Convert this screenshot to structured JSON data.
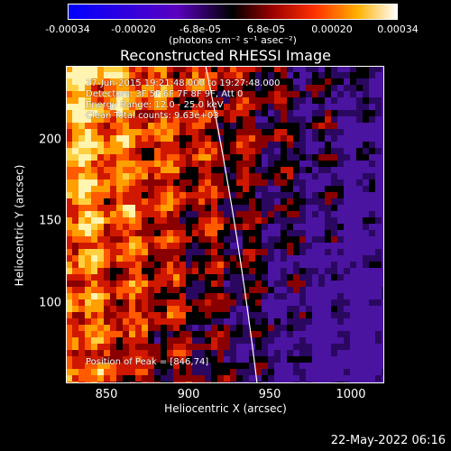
{
  "colorbar": {
    "ticks": [
      "-0.00034",
      "-0.00020",
      "-6.8e-05",
      "6.8e-05",
      "0.00020",
      "0.00034"
    ],
    "unit": "(photons cm⁻² s⁻¹ asec⁻²)",
    "range": [
      -0.00034,
      0.00034
    ]
  },
  "title": "Reconstructed RHESSI Image",
  "info": {
    "line1": "27-Jun-2015 19:21:48.000 to 19:27:48.000",
    "line2": "Detectors: 3F 5F 6F 7F 8F 9F, Att 0",
    "line3": "Energy Range: 12.0 - 25.0 keV",
    "line4": "Clean    Total counts: 9.63e+03",
    "peak": "Position of Peak = [846,74]"
  },
  "axes": {
    "xlabel": "Heliocentric X (arcsec)",
    "ylabel": "Heliocentric Y (arcsec)",
    "xticks": [
      "850",
      "900",
      "950",
      "1000"
    ],
    "yticks": [
      "200",
      "150",
      "100"
    ],
    "xlim": [
      827,
      1023
    ],
    "ylim": [
      48,
      243
    ]
  },
  "timestamp": "22-May-2022 06:16",
  "colors": {
    "background": "#000000",
    "text": "#ffffff",
    "limb_line": "#ffffff"
  }
}
